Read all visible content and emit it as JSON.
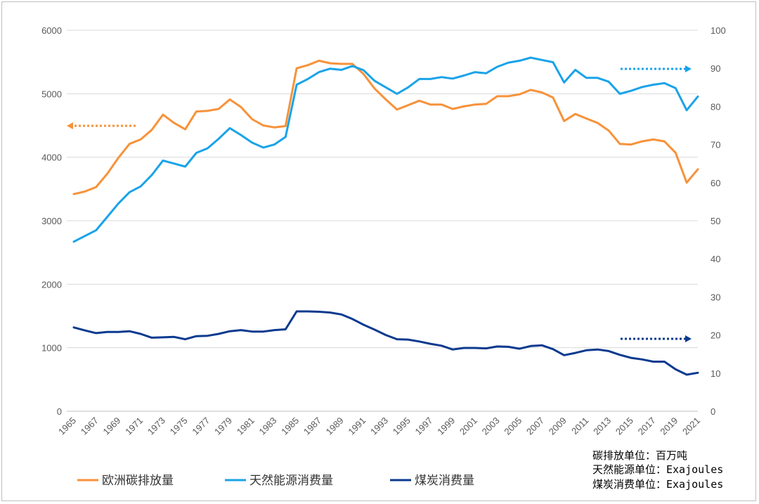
{
  "chart_data": {
    "type": "line",
    "title": "",
    "x": [
      1965,
      1966,
      1967,
      1968,
      1969,
      1970,
      1971,
      1972,
      1973,
      1974,
      1975,
      1976,
      1977,
      1978,
      1979,
      1980,
      1981,
      1982,
      1983,
      1984,
      1985,
      1986,
      1987,
      1988,
      1989,
      1990,
      1991,
      1992,
      1993,
      1994,
      1995,
      1996,
      1997,
      1998,
      1999,
      2000,
      2001,
      2002,
      2003,
      2004,
      2005,
      2006,
      2007,
      2008,
      2009,
      2010,
      2011,
      2012,
      2013,
      2014,
      2015,
      2016,
      2017,
      2018,
      2019,
      2020,
      2021
    ],
    "x_tick_labels": [
      "1965",
      "1967",
      "1969",
      "1971",
      "1973",
      "1975",
      "1977",
      "1979",
      "1981",
      "1983",
      "1985",
      "1987",
      "1989",
      "1991",
      "1993",
      "1995",
      "1997",
      "1999",
      "2001",
      "2003",
      "2005",
      "2007",
      "2009",
      "2011",
      "2013",
      "2015",
      "2017",
      "2019",
      "2021"
    ],
    "y_left": {
      "min": 0,
      "max": 6000,
      "ticks": [
        "0",
        "1000",
        "2000",
        "3000",
        "4000",
        "5000",
        "6000"
      ]
    },
    "y_right": {
      "min": 0,
      "max": 100,
      "ticks": [
        "0",
        "10",
        "20",
        "30",
        "40",
        "50",
        "60",
        "70",
        "80",
        "90",
        "100"
      ]
    },
    "series": [
      {
        "name": "欧洲碳排放量",
        "axis": "left",
        "color": "#F7923A",
        "values": [
          3420,
          3460,
          3530,
          3740,
          3990,
          4210,
          4280,
          4430,
          4670,
          4540,
          4440,
          4720,
          4730,
          4760,
          4910,
          4790,
          4600,
          4500,
          4470,
          4490,
          5400,
          5450,
          5520,
          5480,
          5470,
          5470,
          5310,
          5080,
          4910,
          4750,
          4820,
          4890,
          4830,
          4830,
          4760,
          4800,
          4830,
          4840,
          4960,
          4960,
          4990,
          5060,
          5020,
          4940,
          4570,
          4680,
          4610,
          4540,
          4420,
          4210,
          4200,
          4250,
          4280,
          4250,
          4070,
          3600,
          3810
        ]
      },
      {
        "name": "天然能源消费量",
        "axis": "right",
        "color": "#1AA3E8",
        "values": [
          44.5,
          46.0,
          47.5,
          51.0,
          54.5,
          57.5,
          59.0,
          62.0,
          65.8,
          65.0,
          64.2,
          67.8,
          69.0,
          71.5,
          74.3,
          72.5,
          70.5,
          69.2,
          70.0,
          72.0,
          85.7,
          87.2,
          89.0,
          89.9,
          89.6,
          90.6,
          89.5,
          86.7,
          85.0,
          83.3,
          85.0,
          87.2,
          87.2,
          87.7,
          87.3,
          88.1,
          89.0,
          88.7,
          90.4,
          91.5,
          92.0,
          92.8,
          92.2,
          91.6,
          86.3,
          89.6,
          87.5,
          87.5,
          86.5,
          83.3,
          84.1,
          85.1,
          85.7,
          86.1,
          84.8,
          79.0,
          82.6
        ]
      },
      {
        "name": "煤炭消费量",
        "axis": "right",
        "color": "#0B3A8F",
        "values": [
          22.0,
          21.2,
          20.5,
          20.8,
          20.8,
          21.0,
          20.3,
          19.3,
          19.4,
          19.5,
          18.9,
          19.7,
          19.8,
          20.3,
          21.0,
          21.3,
          20.9,
          20.9,
          21.3,
          21.5,
          26.2,
          26.2,
          26.1,
          25.9,
          25.4,
          24.2,
          22.7,
          21.4,
          20.0,
          18.9,
          18.8,
          18.3,
          17.7,
          17.2,
          16.2,
          16.6,
          16.6,
          16.5,
          17.0,
          16.9,
          16.4,
          17.1,
          17.3,
          16.3,
          14.7,
          15.3,
          16.0,
          16.2,
          15.8,
          14.8,
          14.0,
          13.6,
          13.0,
          13.0,
          11.0,
          9.6,
          10.1
        ]
      }
    ],
    "annotations": [
      {
        "label": "arrow-left-orange",
        "points_to": "left axis",
        "color": "#F7923A"
      },
      {
        "label": "arrow-right-lightblue",
        "points_to": "right axis",
        "color": "#1AA3E8"
      },
      {
        "label": "arrow-right-darkblue",
        "points_to": "right axis",
        "color": "#0B3A8F"
      }
    ],
    "grid": true,
    "legend_position": "bottom-left"
  },
  "unit_notes": [
    "碳排放单位：百万吨",
    "天然能源单位：Exajoules",
    "煤炭消费单位：Exajoules"
  ]
}
